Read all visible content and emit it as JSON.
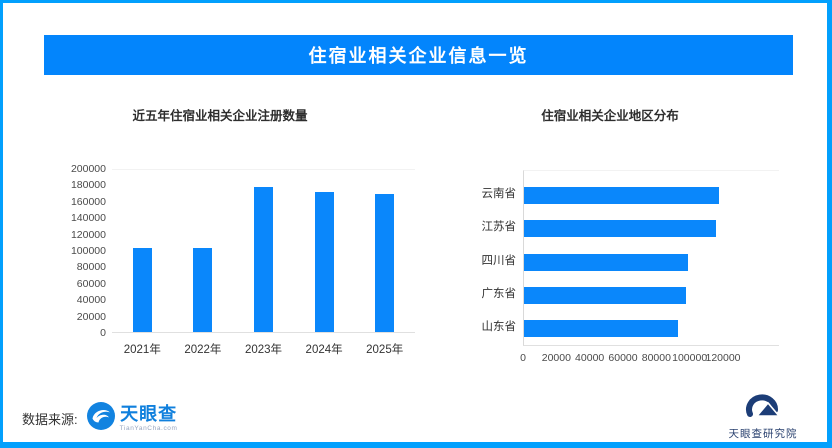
{
  "header": {
    "title": "住宿业相关企业信息一览"
  },
  "colors": {
    "frame": "#02a0fd",
    "banner": "#0385fc",
    "bar": "#0a87fb",
    "tianyancha_blue": "#1080dd",
    "institute_navy": "#29416f"
  },
  "chart_data": [
    {
      "type": "bar",
      "orientation": "vertical",
      "title": "近五年住宿业相关企业注册数量",
      "categories": [
        "2021年",
        "2022年",
        "2023年",
        "2024年",
        "2025年"
      ],
      "values": [
        103000,
        102000,
        177000,
        171000,
        168000
      ],
      "ylim": [
        0,
        200000
      ],
      "yticks": [
        "0",
        "20000",
        "40000",
        "60000",
        "80000",
        "100000",
        "120000",
        "140000",
        "160000",
        "180000",
        "200000"
      ],
      "grid": false,
      "legend": "none",
      "bar_color": "#0a87fb"
    },
    {
      "type": "bar",
      "orientation": "horizontal",
      "title": "住宿业相关企业地区分布",
      "categories": [
        "云南省",
        "江苏省",
        "四川省",
        "广东省",
        "山东省"
      ],
      "values": [
        117000,
        115000,
        98500,
        97000,
        92500
      ],
      "xlim": [
        0,
        120000
      ],
      "xticks": [
        "0",
        "20000",
        "40000",
        "60000",
        "80000",
        "100000",
        "120000"
      ],
      "grid": false,
      "legend": "none",
      "bar_color": "#0a87fb"
    }
  ],
  "footer": {
    "source_label": "数据来源:",
    "tianyancha_name": "天眼查",
    "tianyancha_sub": "TianYanCha.com",
    "institute_label": "天眼查研究院"
  }
}
